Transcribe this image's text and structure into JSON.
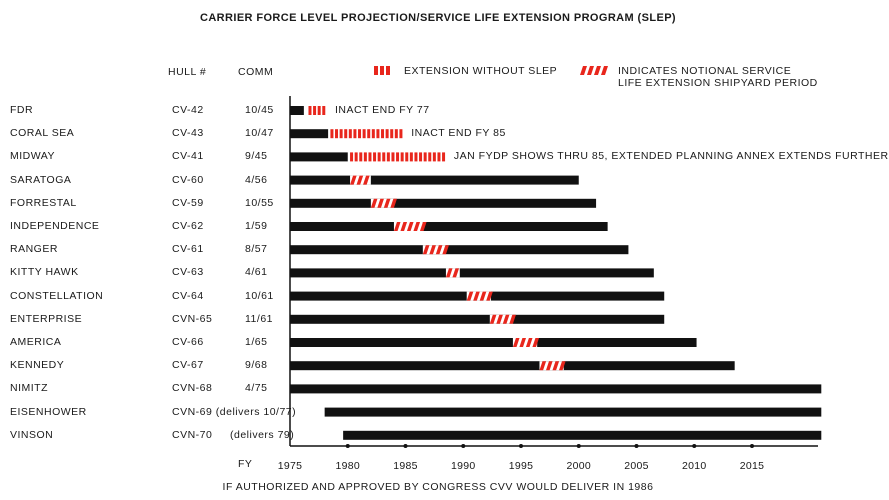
{
  "chart_data": {
    "type": "bar",
    "title": "CARRIER FORCE LEVEL PROJECTION/SERVICE LIFE EXTENSION PROGRAM (SLEP)",
    "column_headers": {
      "hull": "HULL #",
      "comm": "COMM"
    },
    "xlabel": "FY",
    "xlim": [
      1975,
      2021
    ],
    "x_ticks": [
      1975,
      1980,
      1985,
      1990,
      1995,
      2000,
      2005,
      2010,
      2015
    ],
    "legend": {
      "extension": "EXTENSION WITHOUT SLEP",
      "slep_line1": "INDICATES NOTIONAL SERVICE",
      "slep_line2": "LIFE EXTENSION SHIPYARD PERIOD"
    },
    "colors": {
      "bar": "#111111",
      "extension": "#e8261c",
      "slep": "#e8261c",
      "axis": "#111111"
    },
    "carriers": [
      {
        "name": "FDR",
        "hull": "CV-42",
        "comm": "10/45",
        "start": 1975,
        "end": 1976.2,
        "ext": [
          1976.6,
          1978.2
        ],
        "annotation": "INACT END FY 77"
      },
      {
        "name": "CORAL SEA",
        "hull": "CV-43",
        "comm": "10/47",
        "start": 1975,
        "end": 1978.3,
        "ext": [
          1978.5,
          1984.8
        ],
        "annotation": "INACT END FY 85"
      },
      {
        "name": "MIDWAY",
        "hull": "CV-41",
        "comm": "9/45",
        "start": 1975,
        "end": 1980,
        "ext": [
          1980.2,
          1988.5
        ],
        "annotation": "JAN FYDP SHOWS THRU 85, EXTENDED PLANNING ANNEX EXTENDS FURTHER"
      },
      {
        "name": "SARATOGA",
        "hull": "CV-60",
        "comm": "4/56",
        "start": 1975,
        "end": 2000,
        "slep": [
          1980.2,
          1982
        ]
      },
      {
        "name": "FORRESTAL",
        "hull": "CV-59",
        "comm": "10/55",
        "start": 1975,
        "end": 2001.5,
        "slep": [
          1982,
          1984
        ]
      },
      {
        "name": "INDEPENDENCE",
        "hull": "CV-62",
        "comm": "1/59",
        "start": 1975,
        "end": 2002.5,
        "slep": [
          1984,
          1986.5
        ]
      },
      {
        "name": "RANGER",
        "hull": "CV-61",
        "comm": "8/57",
        "start": 1975,
        "end": 2004.3,
        "slep": [
          1986.5,
          1988.5
        ]
      },
      {
        "name": "KITTY HAWK",
        "hull": "CV-63",
        "comm": "4/61",
        "start": 1975,
        "end": 2006.5,
        "slep": [
          1988.5,
          1989.7
        ]
      },
      {
        "name": "CONSTELLATION",
        "hull": "CV-64",
        "comm": "10/61",
        "start": 1975,
        "end": 2007.4,
        "slep": [
          1990.3,
          1992.4
        ]
      },
      {
        "name": "ENTERPRISE",
        "hull": "CVN-65",
        "comm": "11/61",
        "start": 1975,
        "end": 2007.4,
        "slep": [
          1992.3,
          1994.3
        ]
      },
      {
        "name": "AMERICA",
        "hull": "CV-66",
        "comm": "1/65",
        "start": 1975,
        "end": 2010.2,
        "slep": [
          1994.3,
          1996.4
        ]
      },
      {
        "name": "KENNEDY",
        "hull": "CV-67",
        "comm": "9/68",
        "start": 1975,
        "end": 2013.5,
        "slep": [
          1996.6,
          1998.7
        ]
      },
      {
        "name": "NIMITZ",
        "hull": "CVN-68",
        "comm": "4/75",
        "start": 1975,
        "end": 2021
      },
      {
        "name": "EISENHOWER",
        "hull": "CVN-69 (delivers 10/77)",
        "comm": "",
        "start": 1978,
        "end": 2021
      },
      {
        "name": "VINSON",
        "hull": "CVN-70",
        "comm": "(delivers 79)",
        "start": 1979.6,
        "end": 2021
      }
    ],
    "footnote": "IF AUTHORIZED AND APPROVED BY CONGRESS CVV WOULD DELIVER IN 1986"
  }
}
